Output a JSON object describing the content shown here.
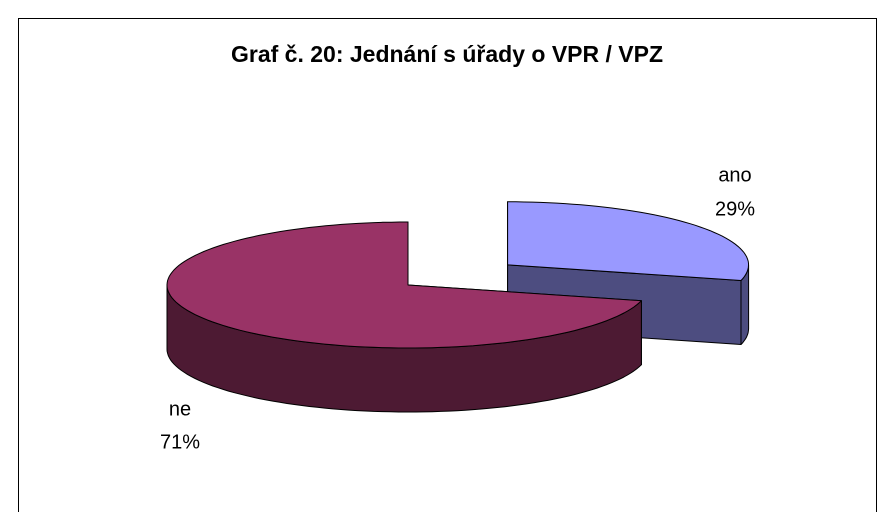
{
  "chart_data": {
    "type": "pie",
    "title": "Graf č. 20: Jednání s úřady o VPR / VPZ",
    "categories": [
      "ano",
      "ne"
    ],
    "values": [
      29,
      71
    ],
    "value_labels": [
      "29%",
      "71%"
    ],
    "colors": [
      "#9999ff",
      "#993366"
    ],
    "side_colors": [
      "#4d4d80",
      "#4d1a33"
    ],
    "explode": [
      true,
      false
    ]
  }
}
